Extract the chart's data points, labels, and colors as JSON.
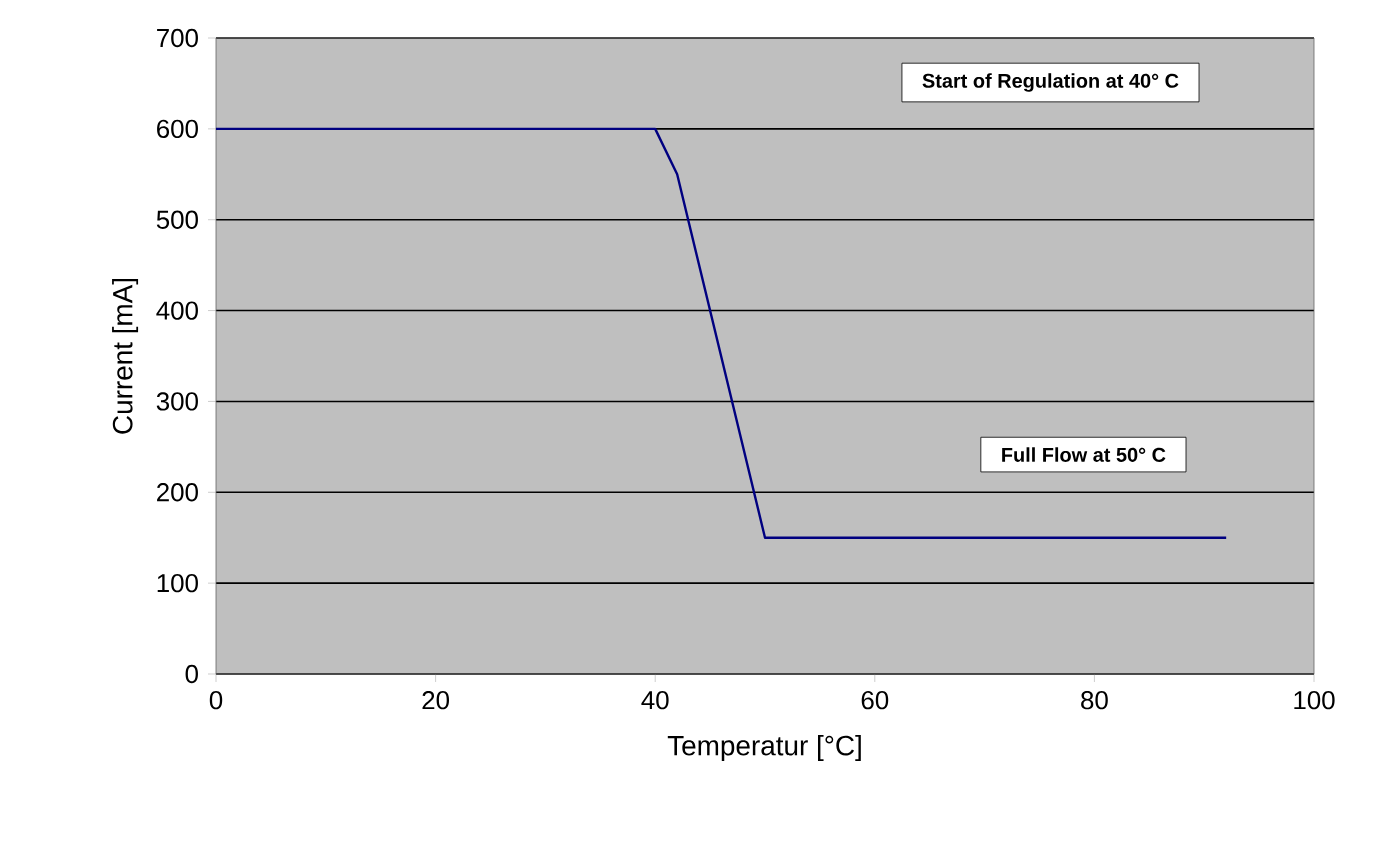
{
  "chart_data": {
    "type": "line",
    "xlabel": "Temperatur [°C]",
    "ylabel": "Current [mA]",
    "x": [
      0,
      40,
      42,
      50,
      92
    ],
    "series": [
      {
        "color": "#000080",
        "values": [
          600,
          600,
          550,
          150,
          150
        ]
      }
    ],
    "xlim": [
      0,
      100
    ],
    "xticks": [
      0,
      20,
      40,
      60,
      80,
      100
    ],
    "ylim": [
      0,
      700
    ],
    "yticks": [
      0,
      100,
      200,
      300,
      400,
      500,
      600,
      700
    ],
    "grid": "y",
    "marker": "none",
    "line_style": "solid",
    "annotations": [
      "Start of Regulation at 40° C",
      "Full Flow at 50° C"
    ]
  }
}
